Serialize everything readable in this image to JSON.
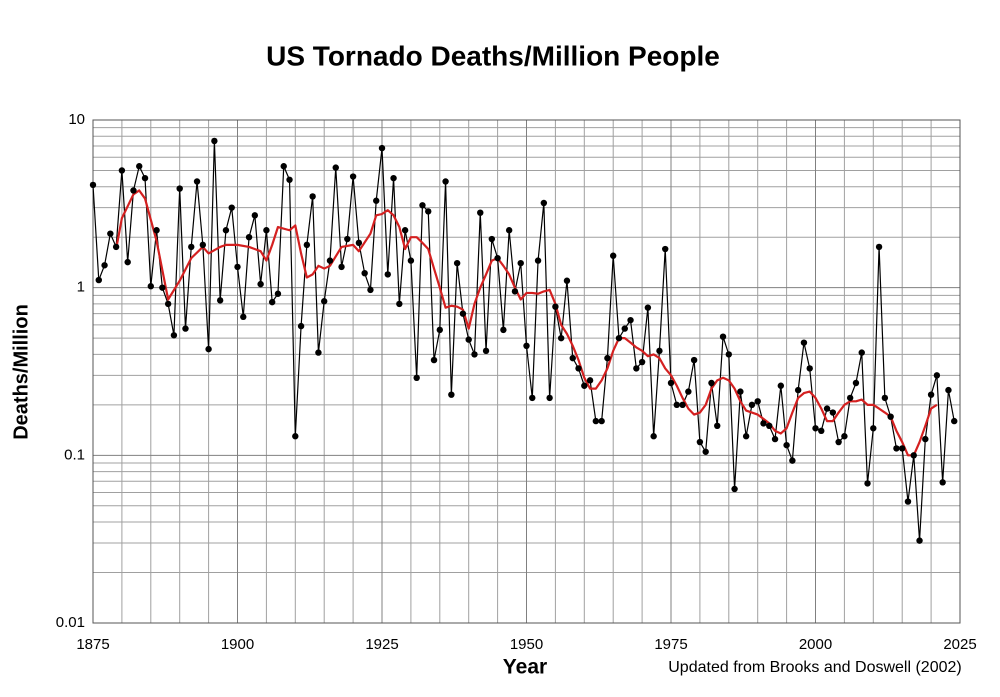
{
  "chart_data": {
    "type": "line",
    "title": "US Tornado Deaths/Million People",
    "x_label": "Year",
    "y_label": "Deaths/Million",
    "annotation": "Updated from Brooks and Doswell (2002)",
    "ylog": true,
    "grid": true,
    "xlim": [
      1875,
      2025
    ],
    "xticks": [
      1875,
      1900,
      1925,
      1950,
      1975,
      2000,
      2025
    ],
    "xminorticks": [
      1880,
      1885,
      1890,
      1895,
      1905,
      1910,
      1915,
      1920,
      1930,
      1935,
      1940,
      1945,
      1955,
      1960,
      1965,
      1970,
      1980,
      1985,
      1990,
      1995,
      2005,
      2010,
      2015,
      2020
    ],
    "ylim": [
      0.01,
      10
    ],
    "yticks": [
      0.01,
      0.1,
      1,
      10
    ],
    "yminorticks": [
      0.02,
      0.03,
      0.04,
      0.05,
      0.06,
      0.07,
      0.08,
      0.09,
      0.2,
      0.3,
      0.4,
      0.5,
      0.6,
      0.7,
      0.8,
      0.9,
      2,
      3,
      4,
      5,
      6,
      7,
      8,
      9
    ],
    "series": [
      {
        "color": "#000000",
        "markers": true,
        "x": [
          1875,
          1876,
          1877,
          1878,
          1879,
          1880,
          1881,
          1882,
          1883,
          1884,
          1885,
          1886,
          1887,
          1888,
          1889,
          1890,
          1891,
          1892,
          1893,
          1894,
          1895,
          1896,
          1897,
          1898,
          1899,
          1900,
          1901,
          1902,
          1903,
          1904,
          1905,
          1906,
          1907,
          1908,
          1909,
          1910,
          1911,
          1912,
          1913,
          1914,
          1915,
          1916,
          1917,
          1918,
          1919,
          1920,
          1921,
          1922,
          1923,
          1924,
          1925,
          1926,
          1927,
          1928,
          1929,
          1930,
          1931,
          1932,
          1933,
          1934,
          1935,
          1936,
          1937,
          1938,
          1939,
          1940,
          1941,
          1942,
          1943,
          1944,
          1945,
          1946,
          1947,
          1948,
          1949,
          1950,
          1951,
          1952,
          1953,
          1954,
          1955,
          1956,
          1957,
          1958,
          1959,
          1960,
          1961,
          1962,
          1963,
          1964,
          1965,
          1966,
          1967,
          1968,
          1969,
          1970,
          1971,
          1972,
          1973,
          1974,
          1975,
          1976,
          1977,
          1978,
          1979,
          1980,
          1981,
          1982,
          1983,
          1984,
          1985,
          1986,
          1987,
          1988,
          1989,
          1990,
          1991,
          1992,
          1993,
          1994,
          1995,
          1996,
          1997,
          1998,
          1999,
          2000,
          2001,
          2002,
          2003,
          2004,
          2005,
          2006,
          2007,
          2008,
          2009,
          2010,
          2011,
          2012,
          2013,
          2014,
          2015,
          2016,
          2017,
          2018,
          2019,
          2020,
          2021,
          2022,
          2023,
          2024
        ],
        "values": [
          4.1,
          1.11,
          1.36,
          2.1,
          1.75,
          5.0,
          1.42,
          3.8,
          5.3,
          4.5,
          1.02,
          2.2,
          1.0,
          0.8,
          0.52,
          3.9,
          0.57,
          1.75,
          4.3,
          1.8,
          0.43,
          7.5,
          0.84,
          2.2,
          3.0,
          1.33,
          0.67,
          2.0,
          2.7,
          1.05,
          2.2,
          0.82,
          0.92,
          5.3,
          4.4,
          0.13,
          0.59,
          1.8,
          3.5,
          0.41,
          0.83,
          1.45,
          5.2,
          1.33,
          1.95,
          4.6,
          1.85,
          1.22,
          0.97,
          3.3,
          6.8,
          1.2,
          4.5,
          0.8,
          2.2,
          1.45,
          0.29,
          3.1,
          2.85,
          0.37,
          0.56,
          4.3,
          0.23,
          1.4,
          0.7,
          0.49,
          0.4,
          2.8,
          0.42,
          1.95,
          1.5,
          0.56,
          2.2,
          0.95,
          1.4,
          0.45,
          0.22,
          1.45,
          3.2,
          0.22,
          0.77,
          0.5,
          1.1,
          0.38,
          0.33,
          0.26,
          0.28,
          0.16,
          0.16,
          0.38,
          1.55,
          0.5,
          0.57,
          0.64,
          0.33,
          0.36,
          0.76,
          0.13,
          0.42,
          1.7,
          0.27,
          0.2,
          0.2,
          0.24,
          0.37,
          0.12,
          0.105,
          0.27,
          0.15,
          0.51,
          0.4,
          0.063,
          0.24,
          0.13,
          0.2,
          0.21,
          0.155,
          0.15,
          0.125,
          0.26,
          0.115,
          0.093,
          0.245,
          0.47,
          0.33,
          0.145,
          0.14,
          0.19,
          0.18,
          0.12,
          0.13,
          0.22,
          0.27,
          0.41,
          0.068,
          0.145,
          1.75,
          0.22,
          0.17,
          0.11,
          0.11,
          0.053,
          0.1,
          0.031,
          0.125,
          0.23,
          0.3,
          0.069,
          0.245,
          0.16
        ]
      },
      {
        "color": "#d42020",
        "markers": false,
        "x": [
          1879,
          1880,
          1882,
          1883,
          1884,
          1886,
          1888,
          1890,
          1892,
          1894,
          1895,
          1897,
          1898,
          1900,
          1902,
          1904,
          1905,
          1906,
          1907,
          1909,
          1910,
          1911,
          1912,
          1913,
          1914,
          1915,
          1916,
          1918,
          1920,
          1921,
          1923,
          1924,
          1925,
          1926,
          1927,
          1928,
          1929,
          1930,
          1931,
          1932,
          1933,
          1934,
          1935,
          1936,
          1937,
          1938,
          1939,
          1940,
          1941,
          1942,
          1943,
          1944,
          1945,
          1946,
          1947,
          1948,
          1949,
          1950,
          1951,
          1952,
          1953,
          1954,
          1955,
          1956,
          1957,
          1958,
          1959,
          1960,
          1961,
          1962,
          1963,
          1964,
          1965,
          1966,
          1967,
          1968,
          1969,
          1970,
          1971,
          1972,
          1973,
          1974,
          1975,
          1976,
          1977,
          1978,
          1979,
          1980,
          1981,
          1982,
          1983,
          1984,
          1985,
          1986,
          1987,
          1988,
          1989,
          1990,
          1991,
          1992,
          1993,
          1994,
          1995,
          1996,
          1997,
          1998,
          1999,
          2000,
          2001,
          2002,
          2003,
          2004,
          2005,
          2006,
          2007,
          2008,
          2009,
          2010,
          2011,
          2012,
          2013,
          2014,
          2015,
          2016,
          2017,
          2018,
          2019,
          2020,
          2021
        ],
        "values": [
          1.7,
          2.6,
          3.6,
          3.8,
          3.4,
          1.9,
          0.85,
          1.1,
          1.5,
          1.75,
          1.6,
          1.75,
          1.8,
          1.8,
          1.75,
          1.65,
          1.45,
          1.8,
          2.3,
          2.2,
          2.35,
          1.6,
          1.15,
          1.2,
          1.35,
          1.3,
          1.35,
          1.75,
          1.8,
          1.65,
          2.1,
          2.7,
          2.75,
          2.9,
          2.7,
          2.3,
          1.7,
          2.0,
          2.0,
          1.85,
          1.7,
          1.3,
          1.0,
          0.76,
          0.78,
          0.77,
          0.74,
          0.57,
          0.8,
          1.0,
          1.2,
          1.45,
          1.5,
          1.35,
          1.2,
          1.0,
          0.85,
          0.93,
          0.93,
          0.92,
          0.95,
          0.97,
          0.8,
          0.6,
          0.53,
          0.45,
          0.37,
          0.29,
          0.25,
          0.25,
          0.28,
          0.33,
          0.42,
          0.5,
          0.5,
          0.47,
          0.44,
          0.42,
          0.39,
          0.4,
          0.38,
          0.33,
          0.3,
          0.26,
          0.22,
          0.19,
          0.175,
          0.18,
          0.2,
          0.25,
          0.28,
          0.29,
          0.28,
          0.25,
          0.21,
          0.185,
          0.18,
          0.175,
          0.165,
          0.155,
          0.14,
          0.135,
          0.145,
          0.18,
          0.22,
          0.235,
          0.24,
          0.22,
          0.19,
          0.16,
          0.16,
          0.18,
          0.2,
          0.21,
          0.21,
          0.215,
          0.2,
          0.2,
          0.19,
          0.18,
          0.17,
          0.14,
          0.12,
          0.1,
          0.1,
          0.12,
          0.15,
          0.19,
          0.2
        ]
      }
    ]
  }
}
